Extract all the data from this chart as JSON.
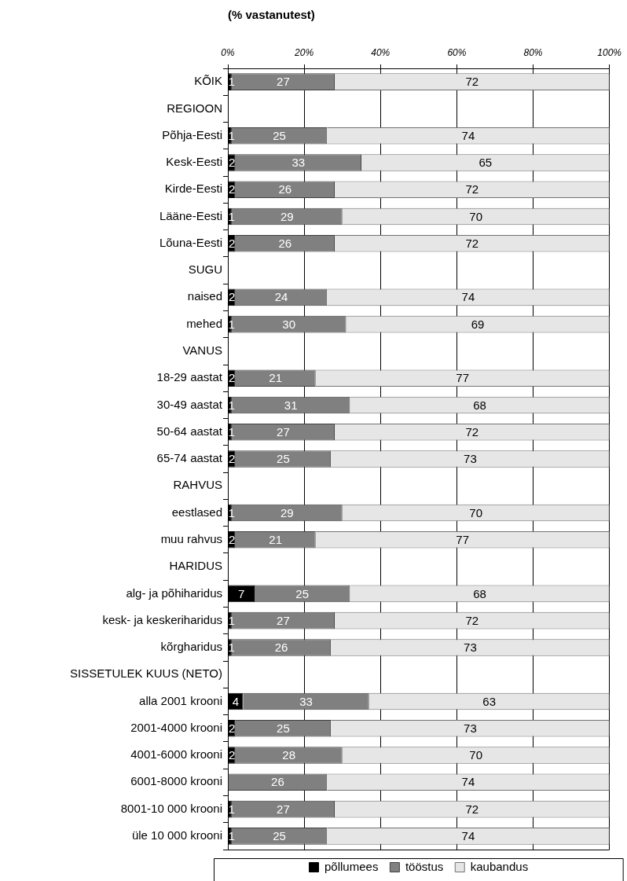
{
  "chart_data": {
    "type": "bar",
    "orientation": "horizontal",
    "stacked": true,
    "title": "(% vastanutest)",
    "categories": [
      "KÕIK",
      "REGIOON",
      "Põhja-Eesti",
      "Kesk-Eesti",
      "Kirde-Eesti",
      "Lääne-Eesti",
      "Lõuna-Eesti",
      "SUGU",
      "naised",
      "mehed",
      "VANUS",
      "18-29 aastat",
      "30-49 aastat",
      "50-64 aastat",
      "65-74 aastat",
      "RAHVUS",
      "eestlased",
      "muu rahvus",
      "HARIDUS",
      "alg- ja põhiharidus",
      "kesk- ja keskeriharidus",
      "kõrgharidus",
      "SISSETULEK KUUS (NETO)",
      "alla 2001 krooni",
      "2001-4000 krooni",
      "4001-6000 krooni",
      "6001-8000 krooni",
      "8001-10 000 krooni",
      "üle 10 000 krooni"
    ],
    "series": [
      {
        "name": "põllumees",
        "color": "#000000",
        "values": [
          1,
          null,
          1,
          2,
          2,
          1,
          2,
          null,
          2,
          1,
          null,
          2,
          1,
          1,
          2,
          null,
          1,
          2,
          null,
          7,
          1,
          1,
          null,
          4,
          2,
          2,
          null,
          1,
          1
        ]
      },
      {
        "name": "tööstus",
        "color": "#808080",
        "values": [
          27,
          null,
          25,
          33,
          26,
          29,
          26,
          null,
          24,
          30,
          null,
          21,
          31,
          27,
          25,
          null,
          29,
          21,
          null,
          25,
          27,
          26,
          null,
          33,
          25,
          28,
          26,
          27,
          25
        ]
      },
      {
        "name": "kaubandus",
        "color": "#e6e6e6",
        "values": [
          72,
          null,
          74,
          65,
          72,
          70,
          72,
          null,
          74,
          69,
          null,
          77,
          68,
          72,
          73,
          null,
          70,
          77,
          null,
          68,
          72,
          73,
          null,
          63,
          73,
          70,
          74,
          72,
          74
        ]
      }
    ],
    "xlim": [
      0,
      100
    ],
    "xticks": [
      {
        "value": 0,
        "label": "0%"
      },
      {
        "value": 20,
        "label": "20%"
      },
      {
        "value": 40,
        "label": "40%"
      },
      {
        "value": 60,
        "label": "60%"
      },
      {
        "value": 80,
        "label": "80%"
      },
      {
        "value": 100,
        "label": "100%"
      }
    ],
    "grid": "x",
    "legend": "bottom",
    "data_labels": true
  }
}
